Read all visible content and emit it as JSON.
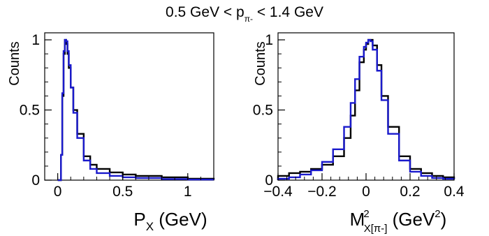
{
  "figure": {
    "title": "0.5 GeV < p",
    "title_sub": "π-",
    "title_suffix": " < 1.4 GeV"
  },
  "colors": {
    "series_black": "#000000",
    "series_blue": "#1a1acc",
    "axis": "#000000"
  },
  "chart_data": [
    {
      "type": "line",
      "step": true,
      "ylabel": "Counts",
      "xlabel": "P",
      "xlabel_sub": "X",
      "xlabel_suffix": " (GeV)",
      "xlim": [
        -0.1,
        1.2
      ],
      "ylim": [
        0,
        1.05
      ],
      "xticks": [
        0,
        0.5,
        1
      ],
      "xtick_labels": [
        "0",
        "0.5",
        "1"
      ],
      "yticks": [
        0,
        0.5,
        1
      ],
      "ytick_labels": [
        "0",
        "0.5",
        "1"
      ],
      "grid": false,
      "x": [
        0.0,
        0.025,
        0.035,
        0.045,
        0.055,
        0.065,
        0.075,
        0.085,
        0.1,
        0.12,
        0.15,
        0.2,
        0.25,
        0.3,
        0.4,
        0.5,
        0.6,
        0.8,
        1.0,
        1.2
      ],
      "series": [
        {
          "values": [
            0.0,
            0.18,
            0.6,
            0.9,
            1.0,
            0.97,
            0.9,
            0.8,
            0.66,
            0.5,
            0.33,
            0.17,
            0.11,
            0.08,
            0.055,
            0.04,
            0.03,
            0.02,
            0.01,
            0.005
          ]
        },
        {
          "values": [
            0.0,
            0.18,
            0.62,
            0.92,
            1.0,
            0.99,
            0.92,
            0.82,
            0.66,
            0.48,
            0.3,
            0.14,
            0.08,
            0.05,
            0.03,
            0.02,
            0.015,
            0.008,
            0.004,
            0.002
          ]
        }
      ]
    },
    {
      "type": "line",
      "step": true,
      "ylabel": "Counts",
      "xlabel": "M",
      "xlabel_sup": "2",
      "xlabel_sub": "X[π-]",
      "xlabel_suffix": " (GeV",
      "xlabel_suffix_sup": "2",
      "xlabel_close": ")",
      "xlim": [
        -0.4,
        0.4
      ],
      "ylim": [
        0,
        1.05
      ],
      "xticks": [
        -0.4,
        -0.2,
        0,
        0.2,
        0.4
      ],
      "xtick_labels": [
        "−0.4",
        "−0.2",
        "0",
        "0.2",
        "0.4"
      ],
      "yticks": [
        0,
        0.5,
        1
      ],
      "ytick_labels": [
        "0",
        "0.5",
        "1"
      ],
      "grid": false,
      "x": [
        -0.4,
        -0.35,
        -0.3,
        -0.25,
        -0.2,
        -0.15,
        -0.1,
        -0.07,
        -0.05,
        -0.03,
        -0.01,
        0.0,
        0.01,
        0.02,
        0.03,
        0.05,
        0.07,
        0.1,
        0.15,
        0.2,
        0.25,
        0.3,
        0.35,
        0.4
      ],
      "series": [
        {
          "values": [
            0.03,
            0.05,
            0.06,
            0.08,
            0.11,
            0.17,
            0.3,
            0.46,
            0.64,
            0.84,
            0.93,
            0.97,
            1.0,
            1.0,
            0.96,
            0.82,
            0.6,
            0.38,
            0.17,
            0.08,
            0.05,
            0.03,
            0.02,
            0.01
          ]
        },
        {
          "values": [
            0.01,
            0.02,
            0.04,
            0.07,
            0.13,
            0.22,
            0.38,
            0.55,
            0.72,
            0.88,
            0.95,
            0.98,
            1.0,
            0.99,
            0.93,
            0.78,
            0.57,
            0.33,
            0.14,
            0.06,
            0.03,
            0.015,
            0.01,
            0.005
          ]
        }
      ]
    }
  ]
}
